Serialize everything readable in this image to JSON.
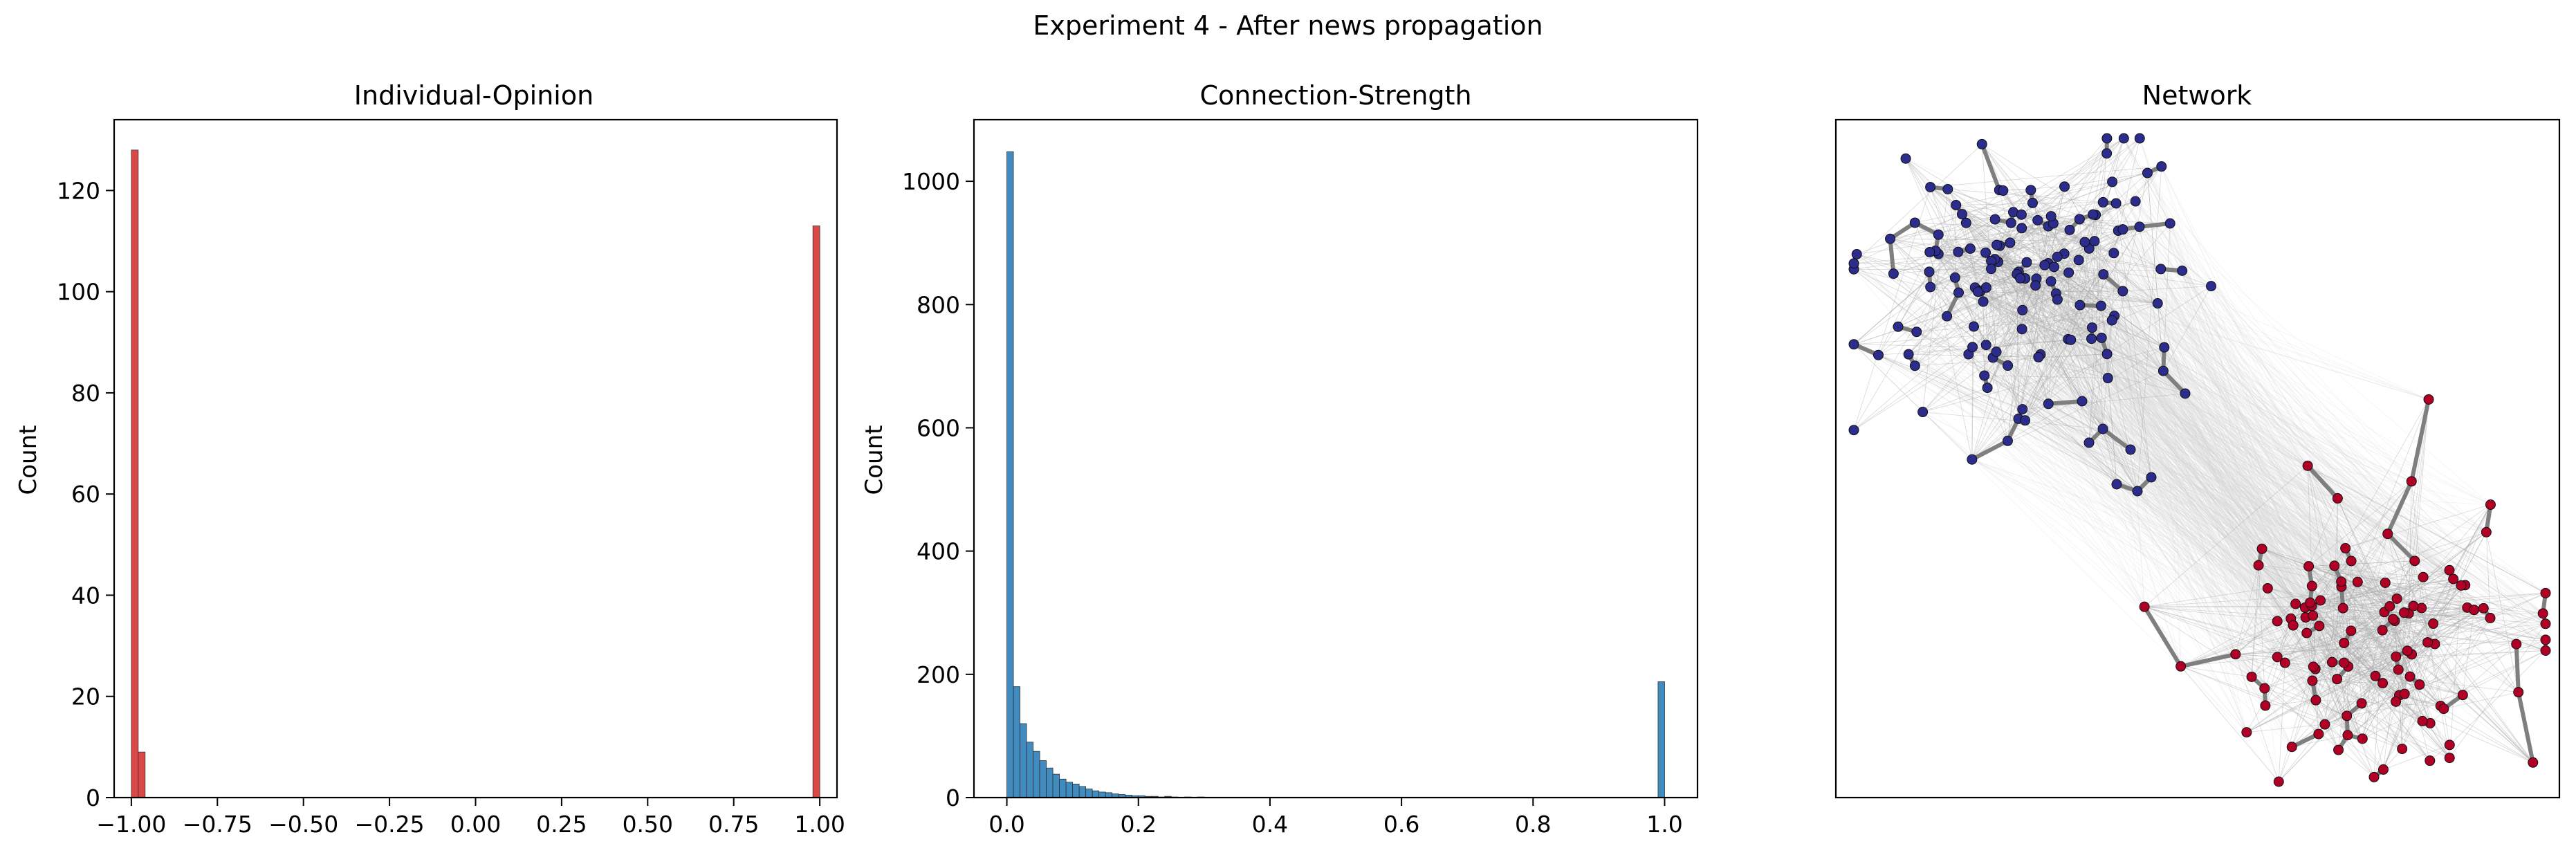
{
  "figure": {
    "suptitle": "Experiment 4 - After news propagation"
  },
  "colors": {
    "opinion_bar": "#d62728",
    "strength_bar": "#1f77b4",
    "node_negative": "#2c2c8c",
    "node_positive": "#b00026",
    "edge_strong": "#7f7f7f",
    "edge_weak": "#d3d3d3",
    "axes": "#000000"
  },
  "chart_data": [
    {
      "type": "bar",
      "title": "Individual-Opinion",
      "xlabel": "",
      "ylabel": "Count",
      "xlim": [
        -1.05,
        1.05
      ],
      "ylim": [
        0,
        134
      ],
      "xticks": [
        -1.0,
        -0.75,
        -0.5,
        -0.25,
        0.0,
        0.25,
        0.5,
        0.75,
        1.0
      ],
      "xtick_labels": [
        "−1.00",
        "−0.75",
        "−0.50",
        "−0.25",
        "0.00",
        "0.25",
        "0.50",
        "0.75",
        "1.00"
      ],
      "yticks": [
        0,
        20,
        40,
        60,
        80,
        100,
        120
      ],
      "ytick_labels": [
        "0",
        "20",
        "40",
        "60",
        "80",
        "100",
        "120"
      ],
      "bin_width": 0.02,
      "bins": [
        {
          "x": -1.0,
          "value": 128
        },
        {
          "x": -0.98,
          "value": 9
        },
        {
          "x": 0.98,
          "value": 113
        }
      ],
      "grid": false
    },
    {
      "type": "bar",
      "title": "Connection-Strength",
      "xlabel": "",
      "ylabel": "Count",
      "xlim": [
        -0.05,
        1.05
      ],
      "ylim": [
        0,
        1100
      ],
      "xticks": [
        0.0,
        0.2,
        0.4,
        0.6,
        0.8,
        1.0
      ],
      "xtick_labels": [
        "0.0",
        "0.2",
        "0.4",
        "0.6",
        "0.8",
        "1.0"
      ],
      "yticks": [
        0,
        200,
        400,
        600,
        800,
        1000
      ],
      "ytick_labels": [
        "0",
        "200",
        "400",
        "600",
        "800",
        "1000"
      ],
      "bin_width": 0.01,
      "bins": [
        {
          "x": 0.0,
          "value": 1048
        },
        {
          "x": 0.01,
          "value": 180
        },
        {
          "x": 0.02,
          "value": 120
        },
        {
          "x": 0.03,
          "value": 90
        },
        {
          "x": 0.04,
          "value": 75
        },
        {
          "x": 0.05,
          "value": 60
        },
        {
          "x": 0.06,
          "value": 48
        },
        {
          "x": 0.07,
          "value": 38
        },
        {
          "x": 0.08,
          "value": 30
        },
        {
          "x": 0.09,
          "value": 25
        },
        {
          "x": 0.1,
          "value": 22
        },
        {
          "x": 0.11,
          "value": 18
        },
        {
          "x": 0.12,
          "value": 14
        },
        {
          "x": 0.13,
          "value": 11
        },
        {
          "x": 0.14,
          "value": 9
        },
        {
          "x": 0.15,
          "value": 8
        },
        {
          "x": 0.16,
          "value": 6
        },
        {
          "x": 0.17,
          "value": 5
        },
        {
          "x": 0.18,
          "value": 4
        },
        {
          "x": 0.19,
          "value": 3
        },
        {
          "x": 0.2,
          "value": 3
        },
        {
          "x": 0.21,
          "value": 2
        },
        {
          "x": 0.22,
          "value": 2
        },
        {
          "x": 0.23,
          "value": 1
        },
        {
          "x": 0.24,
          "value": 2
        },
        {
          "x": 0.25,
          "value": 1
        },
        {
          "x": 0.27,
          "value": 1
        },
        {
          "x": 0.29,
          "value": 1
        },
        {
          "x": 0.99,
          "value": 188
        }
      ],
      "grid": false
    },
    {
      "type": "network",
      "title": "Network",
      "clusters": [
        {
          "opinion": -1.0,
          "node_count": 137,
          "node_color": "#2c2c8c"
        },
        {
          "opinion": 1.0,
          "node_count": 113,
          "node_color": "#b00026"
        }
      ],
      "axes_ticks": false
    }
  ]
}
